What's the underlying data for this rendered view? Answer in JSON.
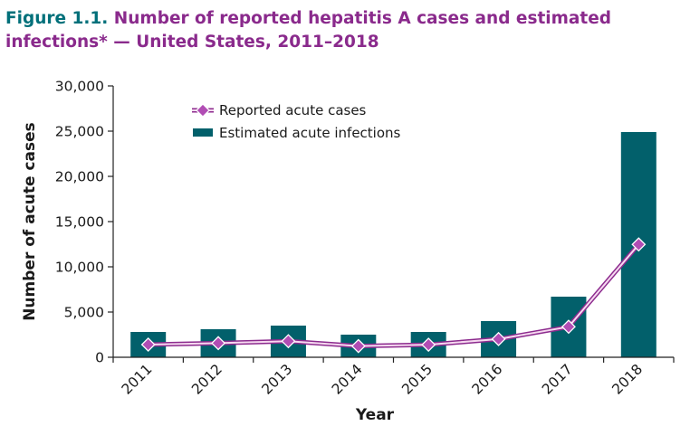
{
  "figure": {
    "label": "Figure 1.1.",
    "title": "Number of reported hepatitis A cases and estimated infections* — United States, 2011–2018"
  },
  "colors": {
    "bar": "#02606b",
    "line_outer": "#8c2b8e",
    "line_inner": "#f6d9f0",
    "marker": "#b14db4",
    "axis": "#222222"
  },
  "chart_data": {
    "type": "bar",
    "categories": [
      "2011",
      "2012",
      "2013",
      "2014",
      "2015",
      "2016",
      "2017",
      "2018"
    ],
    "series": [
      {
        "name": "Estimated acute infections",
        "type": "bar",
        "values": [
          2800,
          3100,
          3500,
          2500,
          2800,
          4000,
          6700,
          24900
        ]
      },
      {
        "name": "Reported acute cases",
        "type": "line",
        "values": [
          1400,
          1560,
          1780,
          1240,
          1390,
          2010,
          3370,
          12470
        ]
      }
    ],
    "xlabel": "Year",
    "ylabel": "Number of acute cases",
    "ylim": [
      0,
      30000
    ],
    "yticks": [
      0,
      5000,
      10000,
      15000,
      20000,
      25000,
      30000
    ],
    "ytick_labels": [
      "0",
      "5,000",
      "10,000",
      "15,000",
      "20,000",
      "25,000",
      "30,000"
    ],
    "legend": [
      "Reported acute cases",
      "Estimated acute infections"
    ],
    "legend_position": "top-left",
    "grid": false
  }
}
